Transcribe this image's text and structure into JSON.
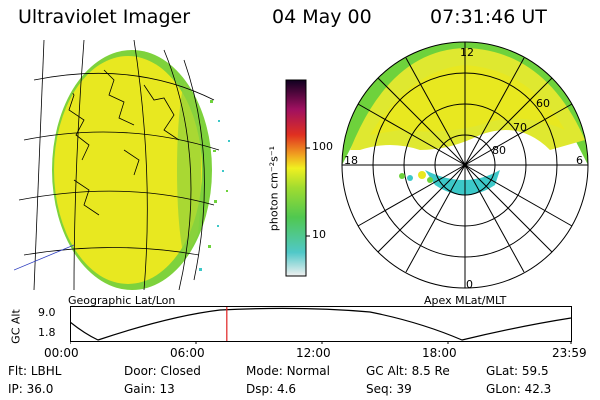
{
  "header": {
    "instrument": "Ultraviolet Imager",
    "date": "04 May 00",
    "time": "07:31:46 UT"
  },
  "left_panel": {
    "caption": "Geographic Lat/Lon"
  },
  "colorbar": {
    "unit_label": "photon cm⁻²s⁻¹",
    "ticks": [
      "100",
      "10"
    ]
  },
  "right_panel": {
    "caption": "Apex MLat/MLT",
    "mlt_labels": [
      "12",
      "18",
      "6",
      "0"
    ],
    "mlat_labels": [
      "60",
      "70",
      "80"
    ]
  },
  "altitude_plot": {
    "ylabel": "GC Alt",
    "yticks": [
      "9.0",
      "1.8"
    ],
    "xticks": [
      "00:00",
      "06:00",
      "12:00",
      "18:00",
      "23:59"
    ],
    "current_time_fraction": 0.313
  },
  "status": {
    "row1": [
      {
        "label": "Flt:",
        "value": "LBHL"
      },
      {
        "label": "Door:",
        "value": "Closed"
      },
      {
        "label": "Mode:",
        "value": "Normal"
      },
      {
        "label": "GC Alt:",
        "value": "8.5 Re"
      },
      {
        "label": "GLat:",
        "value": "59.5"
      }
    ],
    "row2": [
      {
        "label": "IP:",
        "value": "36.0"
      },
      {
        "label": "Gain:",
        "value": "13"
      },
      {
        "label": "Dsp:",
        "value": "4.6"
      },
      {
        "label": "Seq:",
        "value": "39"
      },
      {
        "label": "GLon:",
        "value": "42.3"
      }
    ]
  },
  "colors": {
    "auroral_yellow": "#e8e820",
    "auroral_green": "#6ed23c",
    "auroral_cyan": "#3cc8c8",
    "marker_red": "#e02020"
  }
}
